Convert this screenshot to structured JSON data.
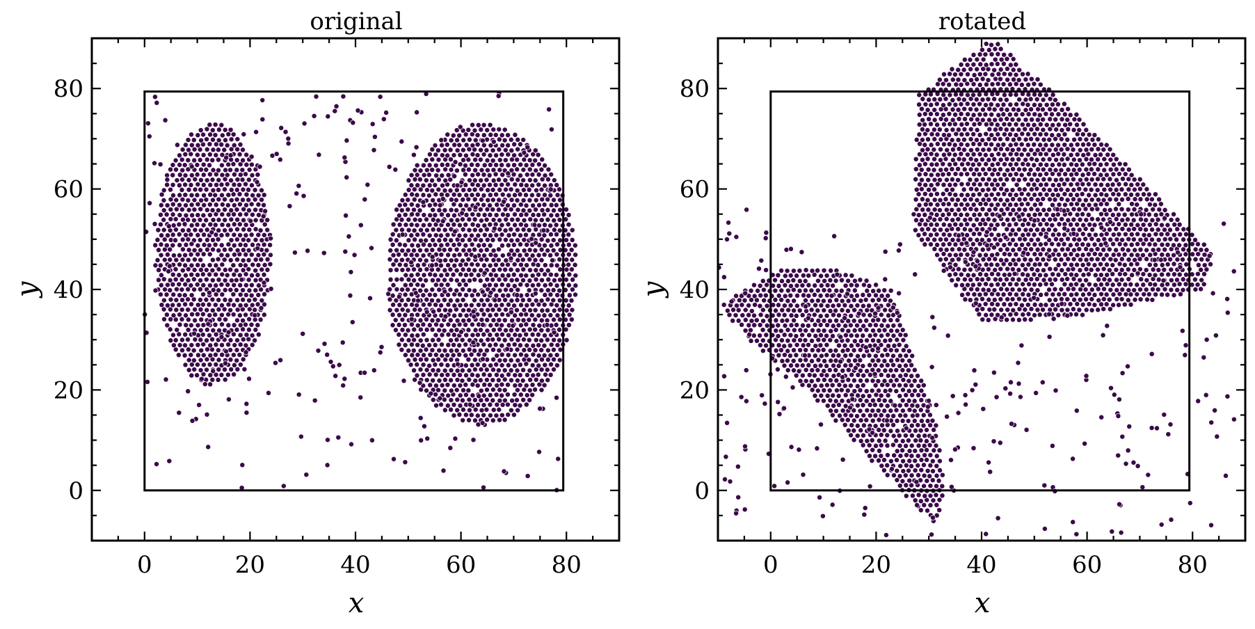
{
  "chart_data": [
    {
      "type": "scatter",
      "title": "original",
      "xlabel": "x",
      "ylabel": "y",
      "xlim": [
        -10,
        90
      ],
      "ylim": [
        -10,
        90
      ],
      "xticks": [
        0,
        20,
        40,
        60,
        80
      ],
      "yticks": [
        0,
        20,
        40,
        60,
        80
      ],
      "grid": false,
      "legend": "none",
      "marker_color": "#3b0a4a",
      "box": {
        "x": [
          0,
          79.4
        ],
        "y": [
          0,
          79.4
        ]
      },
      "clusters": [
        {
          "kind": "ellipse",
          "center": [
            13,
            47
          ],
          "radii": [
            11,
            26
          ],
          "angle": 0,
          "density": "dense"
        },
        {
          "kind": "ellipse",
          "center": [
            64,
            43
          ],
          "radii": [
            18,
            30
          ],
          "angle": 0,
          "density": "dense"
        },
        {
          "kind": "scatter-region",
          "x": [
            0,
            79
          ],
          "y": [
            0,
            79
          ],
          "density": "sparse"
        }
      ]
    },
    {
      "type": "scatter",
      "title": "rotated",
      "xlabel": "x",
      "ylabel": "y",
      "xlim": [
        -10,
        90
      ],
      "ylim": [
        -10,
        90
      ],
      "xticks": [
        0,
        20,
        40,
        60,
        80
      ],
      "yticks": [
        0,
        20,
        40,
        60,
        80
      ],
      "grid": false,
      "legend": "none",
      "marker_color": "#3b0a4a",
      "box": {
        "x": [
          0,
          79.4
        ],
        "y": [
          0,
          79.4
        ]
      },
      "clusters": [
        {
          "kind": "polygon",
          "vertices": [
            [
              28,
              79
            ],
            [
              42,
              90
            ],
            [
              60,
              73
            ],
            [
              84,
              47
            ],
            [
              82,
              40
            ],
            [
              60,
              35
            ],
            [
              40,
              33
            ],
            [
              27,
              52
            ]
          ],
          "density": "dense"
        },
        {
          "kind": "polygon",
          "vertices": [
            [
              -10,
              37
            ],
            [
              -4,
              30
            ],
            [
              7,
              20
            ],
            [
              20,
              5
            ],
            [
              31,
              -7
            ],
            [
              33,
              -2
            ],
            [
              32,
              12
            ],
            [
              27,
              27
            ],
            [
              23,
              40
            ],
            [
              12,
              44
            ],
            [
              2,
              44
            ],
            [
              -5,
              40
            ]
          ],
          "density": "dense"
        },
        {
          "kind": "scatter-region",
          "x": [
            -10,
            88
          ],
          "y": [
            -9,
            56
          ],
          "density": "sparse"
        }
      ]
    }
  ]
}
